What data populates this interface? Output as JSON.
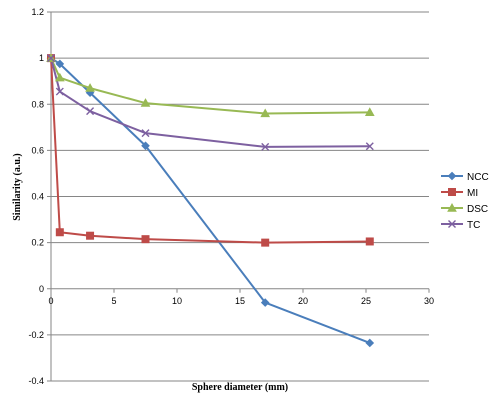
{
  "chart_data": {
    "type": "line",
    "xlabel": "Sphere diameter (mm)",
    "ylabel": "Similarity  (a.u.)",
    "xlim": [
      0,
      30
    ],
    "ylim": [
      -0.4,
      1.2
    ],
    "x_ticks": [
      "0",
      "5",
      "10",
      "15",
      "20",
      "25",
      "30"
    ],
    "y_ticks": [
      "1.2",
      "1",
      "0.8",
      "0.6",
      "0.4",
      "0.2",
      "0",
      "-0.2",
      "-0.4"
    ],
    "grid": true,
    "legend_position": "right",
    "series": [
      {
        "name": "NCC",
        "color": "#4a7ebb",
        "marker": "diamond",
        "x": [
          0,
          0.7,
          3.1,
          7.5,
          17,
          25.3
        ],
        "y": [
          1.0,
          0.975,
          0.85,
          0.62,
          -0.06,
          -0.235
        ]
      },
      {
        "name": "MI",
        "color": "#be4b48",
        "marker": "square",
        "x": [
          0,
          0.7,
          3.1,
          7.5,
          17,
          25.3
        ],
        "y": [
          1.0,
          0.245,
          0.23,
          0.215,
          0.2,
          0.205
        ]
      },
      {
        "name": "DSC",
        "color": "#98b954",
        "marker": "triangle",
        "x": [
          0,
          0.7,
          3.1,
          7.5,
          17,
          25.3
        ],
        "y": [
          1.0,
          0.915,
          0.87,
          0.805,
          0.76,
          0.765
        ]
      },
      {
        "name": "TC",
        "color": "#7d60a0",
        "marker": "x",
        "x": [
          0,
          0.7,
          3.1,
          7.5,
          17,
          25.3
        ],
        "y": [
          1.0,
          0.855,
          0.77,
          0.675,
          0.615,
          0.618
        ]
      }
    ]
  }
}
